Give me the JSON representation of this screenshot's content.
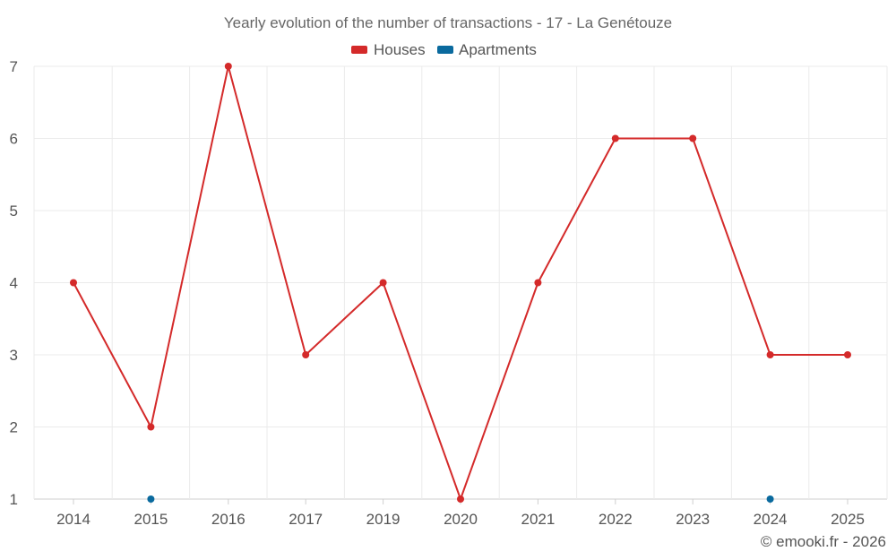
{
  "chart_data": {
    "type": "line",
    "title": "Yearly evolution of the number of transactions - 17 - La Genétouze",
    "categories": [
      "2014",
      "2015",
      "2016",
      "2017",
      "2019",
      "2020",
      "2021",
      "2022",
      "2023",
      "2024",
      "2025"
    ],
    "series": [
      {
        "name": "Houses",
        "color": "#d42a2a",
        "values": [
          4,
          2,
          7,
          3,
          4,
          1,
          4,
          6,
          6,
          3,
          3
        ]
      },
      {
        "name": "Apartments",
        "color": "#0a6a9e",
        "values": [
          null,
          1,
          null,
          null,
          null,
          null,
          null,
          null,
          null,
          1,
          null
        ]
      }
    ],
    "yticks": [
      1,
      2,
      3,
      4,
      5,
      6,
      7
    ],
    "ylim": [
      1,
      7
    ],
    "xlabel": "",
    "ylabel": "",
    "grid": true,
    "legend_position": "top-center"
  },
  "credit": "© emooki.fr - 2026"
}
